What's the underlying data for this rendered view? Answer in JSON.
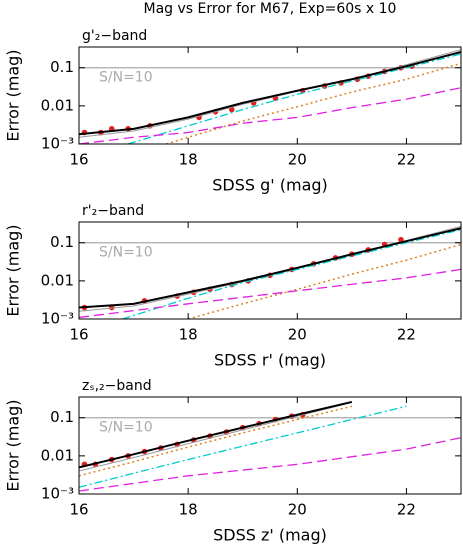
{
  "title": "Mag vs Error for M67, Exp=60s x 10",
  "chart_data": [
    {
      "type": "line",
      "title": "g'₂−band",
      "xlabel": "SDSS g' (mag)",
      "ylabel": "Error (mag)",
      "xlim": [
        16,
        23
      ],
      "ylim": [
        0.001,
        0.35
      ],
      "log_y": true,
      "xticks": [
        16,
        18,
        20,
        22
      ],
      "yticks": [
        {
          "value": 0.001,
          "label": "10⁻³"
        },
        0.01,
        0.1
      ],
      "reference_line": {
        "value": 0.1,
        "label": "S/N=10",
        "color": "#aaaaaa"
      },
      "series": [
        {
          "style": "points",
          "color": "#e02020",
          "x": [
            16.1,
            16.4,
            16.6,
            16.9,
            17.3,
            18.2,
            18.5,
            18.8,
            19.2,
            19.6,
            20.1,
            20.5,
            20.8,
            21.1,
            21.3,
            21.6,
            21.9,
            22.1
          ],
          "values": [
            0.002,
            0.002,
            0.0025,
            0.0025,
            0.003,
            0.005,
            0.007,
            0.008,
            0.012,
            0.016,
            0.025,
            0.033,
            0.04,
            0.05,
            0.06,
            0.08,
            0.1,
            0.11
          ]
        },
        {
          "style": "thin",
          "color": "#999999",
          "x": [
            16,
            17,
            18,
            19,
            20,
            21,
            22,
            23
          ],
          "values": [
            0.0015,
            0.0022,
            0.0045,
            0.011,
            0.024,
            0.05,
            0.12,
            0.3
          ]
        },
        {
          "style": "dashdot",
          "color": "#00cccc",
          "x": [
            16.9,
            18,
            19,
            20,
            21,
            22,
            23
          ],
          "values": [
            0.001,
            0.003,
            0.008,
            0.02,
            0.045,
            0.1,
            0.23
          ]
        },
        {
          "style": "dotted",
          "color": "#e08020",
          "x": [
            17.6,
            18,
            19,
            20,
            21,
            22,
            23
          ],
          "values": [
            0.001,
            0.0015,
            0.004,
            0.0095,
            0.023,
            0.05,
            0.13
          ]
        },
        {
          "style": "dashed",
          "color": "#e020e0",
          "x": [
            16,
            17,
            18,
            19,
            20,
            21,
            22,
            23
          ],
          "values": [
            0.001,
            0.0015,
            0.002,
            0.0035,
            0.005,
            0.009,
            0.015,
            0.03
          ]
        },
        {
          "style": "thick",
          "color": "#000000",
          "x": [
            16,
            17,
            18,
            19,
            20,
            21,
            22,
            23
          ],
          "values": [
            0.0018,
            0.0025,
            0.005,
            0.012,
            0.025,
            0.05,
            0.11,
            0.26
          ]
        }
      ]
    },
    {
      "type": "line",
      "title": "r'₂−band",
      "xlabel": "SDSS r' (mag)",
      "ylabel": "Error (mag)",
      "xlim": [
        16,
        23
      ],
      "ylim": [
        0.001,
        0.35
      ],
      "log_y": true,
      "xticks": [
        16,
        18,
        20,
        22
      ],
      "yticks": [
        {
          "value": 0.001,
          "label": "10⁻³"
        },
        0.01,
        0.1
      ],
      "reference_line": {
        "value": 0.1,
        "label": "S/N=10",
        "color": "#aaaaaa"
      },
      "series": [
        {
          "style": "points",
          "color": "#e02020",
          "x": [
            16.1,
            16.6,
            17.2,
            17.8,
            18.1,
            18.4,
            18.8,
            19.1,
            19.5,
            19.9,
            20.3,
            20.7,
            21.0,
            21.3,
            21.6,
            21.9
          ],
          "values": [
            0.002,
            0.002,
            0.003,
            0.004,
            0.005,
            0.006,
            0.008,
            0.01,
            0.014,
            0.02,
            0.028,
            0.04,
            0.05,
            0.065,
            0.09,
            0.12
          ]
        },
        {
          "style": "thin",
          "color": "#999999",
          "x": [
            16,
            17,
            18,
            19,
            20,
            21,
            22,
            23
          ],
          "values": [
            0.0016,
            0.0022,
            0.0045,
            0.0095,
            0.021,
            0.05,
            0.115,
            0.27
          ]
        },
        {
          "style": "dashdot",
          "color": "#00cccc",
          "x": [
            16.8,
            18,
            19,
            20,
            21,
            22,
            23
          ],
          "values": [
            0.001,
            0.0035,
            0.009,
            0.02,
            0.045,
            0.1,
            0.22
          ]
        },
        {
          "style": "dotted",
          "color": "#e08020",
          "x": [
            18,
            19,
            20,
            21,
            22,
            23
          ],
          "values": [
            0.001,
            0.0025,
            0.006,
            0.015,
            0.035,
            0.09
          ]
        },
        {
          "style": "dashed",
          "color": "#e020e0",
          "x": [
            16,
            18,
            20,
            22,
            23
          ],
          "values": [
            0.0011,
            0.0025,
            0.0055,
            0.012,
            0.02
          ]
        },
        {
          "style": "thick",
          "color": "#000000",
          "x": [
            16,
            17,
            18,
            19,
            20,
            21,
            22,
            23
          ],
          "values": [
            0.002,
            0.0025,
            0.005,
            0.01,
            0.022,
            0.05,
            0.11,
            0.24
          ]
        }
      ]
    },
    {
      "type": "line",
      "title": "zₛ,₂−band",
      "xlabel": "SDSS z' (mag)",
      "ylabel": "Error (mag)",
      "xlim": [
        16,
        23
      ],
      "ylim": [
        0.001,
        0.35
      ],
      "log_y": true,
      "xticks": [
        16,
        18,
        20,
        22
      ],
      "yticks": [
        {
          "value": 0.001,
          "label": "10⁻³"
        },
        0.01,
        0.1
      ],
      "reference_line": {
        "value": 0.1,
        "label": "S/N=10",
        "color": "#aaaaaa"
      },
      "series": [
        {
          "style": "points",
          "color": "#e02020",
          "x": [
            16.1,
            16.3,
            16.6,
            16.9,
            17.2,
            17.5,
            17.8,
            18.1,
            18.4,
            18.7,
            19.0,
            19.3,
            19.6,
            19.9,
            20.1
          ],
          "values": [
            0.006,
            0.006,
            0.008,
            0.01,
            0.013,
            0.016,
            0.02,
            0.026,
            0.033,
            0.042,
            0.055,
            0.07,
            0.09,
            0.11,
            0.12
          ]
        },
        {
          "style": "thin",
          "color": "#999999",
          "x": [
            16,
            17,
            18,
            19,
            20,
            21
          ],
          "values": [
            0.004,
            0.009,
            0.021,
            0.048,
            0.11,
            0.25
          ]
        },
        {
          "style": "dashdot",
          "color": "#00cccc",
          "x": [
            16,
            17,
            18,
            19,
            20,
            21,
            22
          ],
          "values": [
            0.0015,
            0.0035,
            0.008,
            0.018,
            0.04,
            0.09,
            0.2
          ]
        },
        {
          "style": "dotted",
          "color": "#e08020",
          "x": [
            16,
            17,
            18,
            19,
            20,
            21
          ],
          "values": [
            0.003,
            0.007,
            0.017,
            0.04,
            0.09,
            0.2
          ]
        },
        {
          "style": "dashed",
          "color": "#e020e0",
          "x": [
            16,
            18,
            20,
            22,
            23
          ],
          "values": [
            0.0012,
            0.003,
            0.006,
            0.015,
            0.03
          ]
        },
        {
          "style": "thick",
          "color": "#000000",
          "x": [
            16,
            17,
            18,
            19,
            20,
            21
          ],
          "values": [
            0.005,
            0.011,
            0.025,
            0.055,
            0.12,
            0.26
          ]
        }
      ]
    }
  ]
}
